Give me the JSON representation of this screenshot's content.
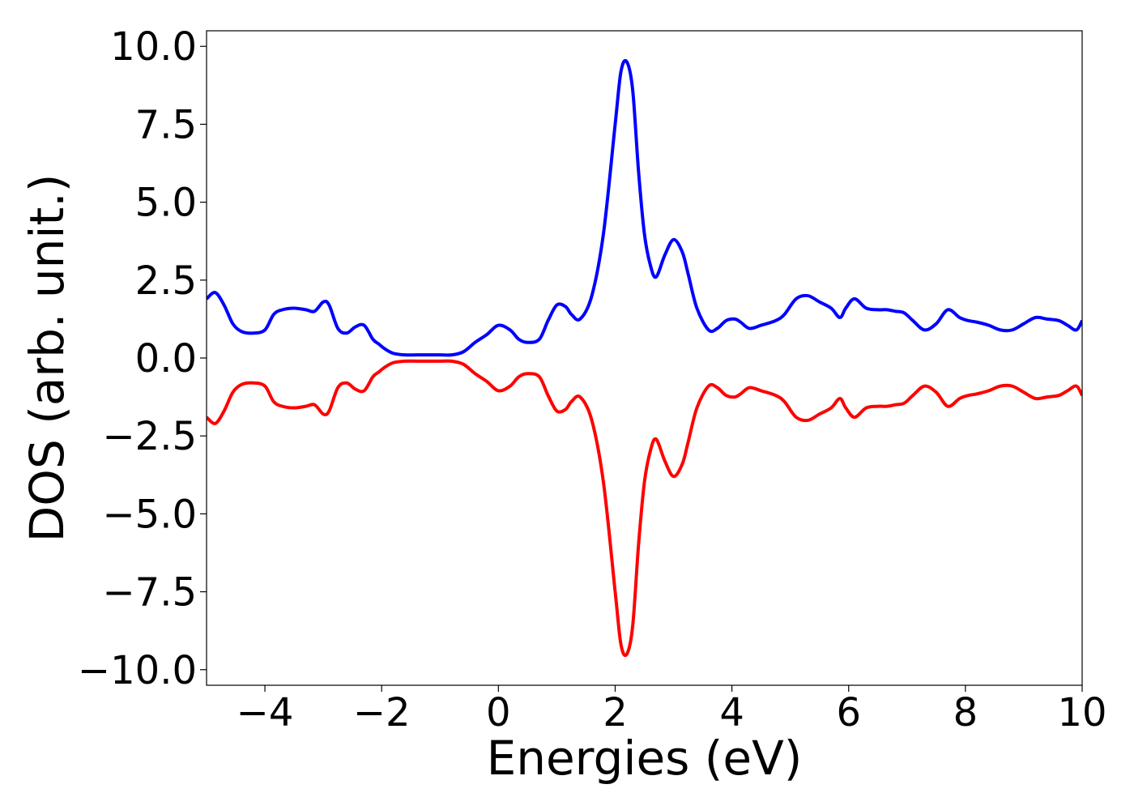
{
  "chart_data": {
    "type": "line",
    "title": "",
    "xlabel": "Energies (eV)",
    "ylabel": "DOS (arb. unit.)",
    "xlim": [
      -5,
      10
    ],
    "ylim": [
      -10.5,
      10.5
    ],
    "xticks": [
      -4,
      -2,
      0,
      2,
      4,
      6,
      8,
      10
    ],
    "xtick_labels": [
      "−4",
      "−2",
      "0",
      "2",
      "4",
      "6",
      "8",
      "10"
    ],
    "yticks": [
      10,
      7.5,
      5,
      2.5,
      0,
      -2.5,
      -5,
      -7.5,
      -10
    ],
    "ytick_labels": [
      "10.0",
      "7.5",
      "5.0",
      "2.5",
      "0.0",
      "−2.5",
      "−5.0",
      "−7.5",
      "−10.0"
    ],
    "grid": false,
    "legend": "none",
    "series": [
      {
        "color": "#0000ff",
        "x": [
          -5.0,
          -4.85,
          -4.7,
          -4.55,
          -4.4,
          -4.2,
          -4.0,
          -3.85,
          -3.7,
          -3.5,
          -3.3,
          -3.15,
          -3.0,
          -2.9,
          -2.75,
          -2.6,
          -2.45,
          -2.3,
          -2.15,
          -2.05,
          -1.95,
          -1.8,
          -1.6,
          -1.4,
          -1.2,
          -1.0,
          -0.8,
          -0.6,
          -0.4,
          -0.2,
          0.0,
          0.2,
          0.35,
          0.5,
          0.7,
          0.85,
          1.0,
          1.15,
          1.25,
          1.4,
          1.6,
          1.8,
          2.0,
          2.1,
          2.2,
          2.3,
          2.4,
          2.5,
          2.6,
          2.7,
          2.85,
          3.0,
          3.15,
          3.25,
          3.4,
          3.6,
          3.75,
          3.9,
          4.05,
          4.15,
          4.3,
          4.5,
          4.75,
          4.9,
          5.1,
          5.3,
          5.5,
          5.7,
          5.85,
          5.95,
          6.1,
          6.3,
          6.5,
          6.65,
          6.8,
          6.95,
          7.1,
          7.3,
          7.5,
          7.7,
          7.9,
          8.05,
          8.2,
          8.4,
          8.6,
          8.8,
          9.0,
          9.2,
          9.4,
          9.6,
          9.75,
          9.9,
          10.0
        ],
        "values": [
          1.9,
          2.1,
          1.7,
          1.1,
          0.85,
          0.8,
          0.9,
          1.4,
          1.55,
          1.6,
          1.55,
          1.5,
          1.8,
          1.7,
          0.95,
          0.8,
          1.0,
          1.05,
          0.6,
          0.45,
          0.3,
          0.15,
          0.1,
          0.1,
          0.1,
          0.1,
          0.1,
          0.2,
          0.5,
          0.75,
          1.05,
          0.9,
          0.6,
          0.5,
          0.6,
          1.2,
          1.7,
          1.65,
          1.4,
          1.25,
          2.0,
          4.0,
          7.5,
          9.2,
          9.5,
          8.6,
          6.0,
          4.0,
          3.0,
          2.6,
          3.3,
          3.8,
          3.4,
          2.7,
          1.6,
          0.9,
          0.95,
          1.2,
          1.25,
          1.15,
          0.95,
          1.05,
          1.2,
          1.4,
          1.9,
          2.0,
          1.8,
          1.6,
          1.3,
          1.6,
          1.9,
          1.6,
          1.55,
          1.55,
          1.5,
          1.45,
          1.2,
          0.9,
          1.1,
          1.55,
          1.3,
          1.2,
          1.15,
          1.05,
          0.9,
          0.9,
          1.1,
          1.3,
          1.25,
          1.2,
          1.05,
          0.9,
          1.2
        ]
      },
      {
        "color": "#ff0000",
        "x": [
          -5.0,
          -4.85,
          -4.7,
          -4.55,
          -4.4,
          -4.2,
          -4.0,
          -3.85,
          -3.7,
          -3.5,
          -3.3,
          -3.15,
          -3.0,
          -2.9,
          -2.75,
          -2.6,
          -2.45,
          -2.3,
          -2.15,
          -2.05,
          -1.95,
          -1.8,
          -1.6,
          -1.4,
          -1.2,
          -1.0,
          -0.8,
          -0.6,
          -0.4,
          -0.2,
          0.0,
          0.2,
          0.35,
          0.5,
          0.7,
          0.85,
          1.0,
          1.15,
          1.25,
          1.4,
          1.6,
          1.8,
          2.0,
          2.1,
          2.2,
          2.3,
          2.4,
          2.5,
          2.6,
          2.7,
          2.85,
          3.0,
          3.15,
          3.25,
          3.4,
          3.6,
          3.75,
          3.9,
          4.05,
          4.15,
          4.3,
          4.5,
          4.75,
          4.9,
          5.1,
          5.3,
          5.5,
          5.7,
          5.85,
          5.95,
          6.1,
          6.3,
          6.5,
          6.65,
          6.8,
          6.95,
          7.1,
          7.3,
          7.5,
          7.7,
          7.9,
          8.05,
          8.2,
          8.4,
          8.6,
          8.8,
          9.0,
          9.2,
          9.4,
          9.6,
          9.75,
          9.9,
          10.0
        ],
        "values": [
          -1.9,
          -2.1,
          -1.7,
          -1.1,
          -0.85,
          -0.8,
          -0.9,
          -1.4,
          -1.55,
          -1.6,
          -1.55,
          -1.5,
          -1.8,
          -1.7,
          -0.95,
          -0.8,
          -1.0,
          -1.05,
          -0.6,
          -0.45,
          -0.3,
          -0.15,
          -0.1,
          -0.1,
          -0.1,
          -0.1,
          -0.1,
          -0.2,
          -0.5,
          -0.75,
          -1.05,
          -0.9,
          -0.6,
          -0.5,
          -0.6,
          -1.2,
          -1.7,
          -1.65,
          -1.4,
          -1.25,
          -2.0,
          -4.0,
          -7.5,
          -9.2,
          -9.5,
          -8.6,
          -6.0,
          -4.0,
          -3.0,
          -2.6,
          -3.3,
          -3.8,
          -3.4,
          -2.7,
          -1.6,
          -0.9,
          -0.95,
          -1.2,
          -1.25,
          -1.15,
          -0.95,
          -1.05,
          -1.2,
          -1.4,
          -1.9,
          -2.0,
          -1.8,
          -1.6,
          -1.3,
          -1.6,
          -1.9,
          -1.6,
          -1.55,
          -1.55,
          -1.5,
          -1.45,
          -1.2,
          -0.9,
          -1.1,
          -1.55,
          -1.3,
          -1.2,
          -1.15,
          -1.05,
          -0.9,
          -0.9,
          -1.1,
          -1.3,
          -1.25,
          -1.2,
          -1.05,
          -0.9,
          -1.2
        ]
      }
    ]
  }
}
